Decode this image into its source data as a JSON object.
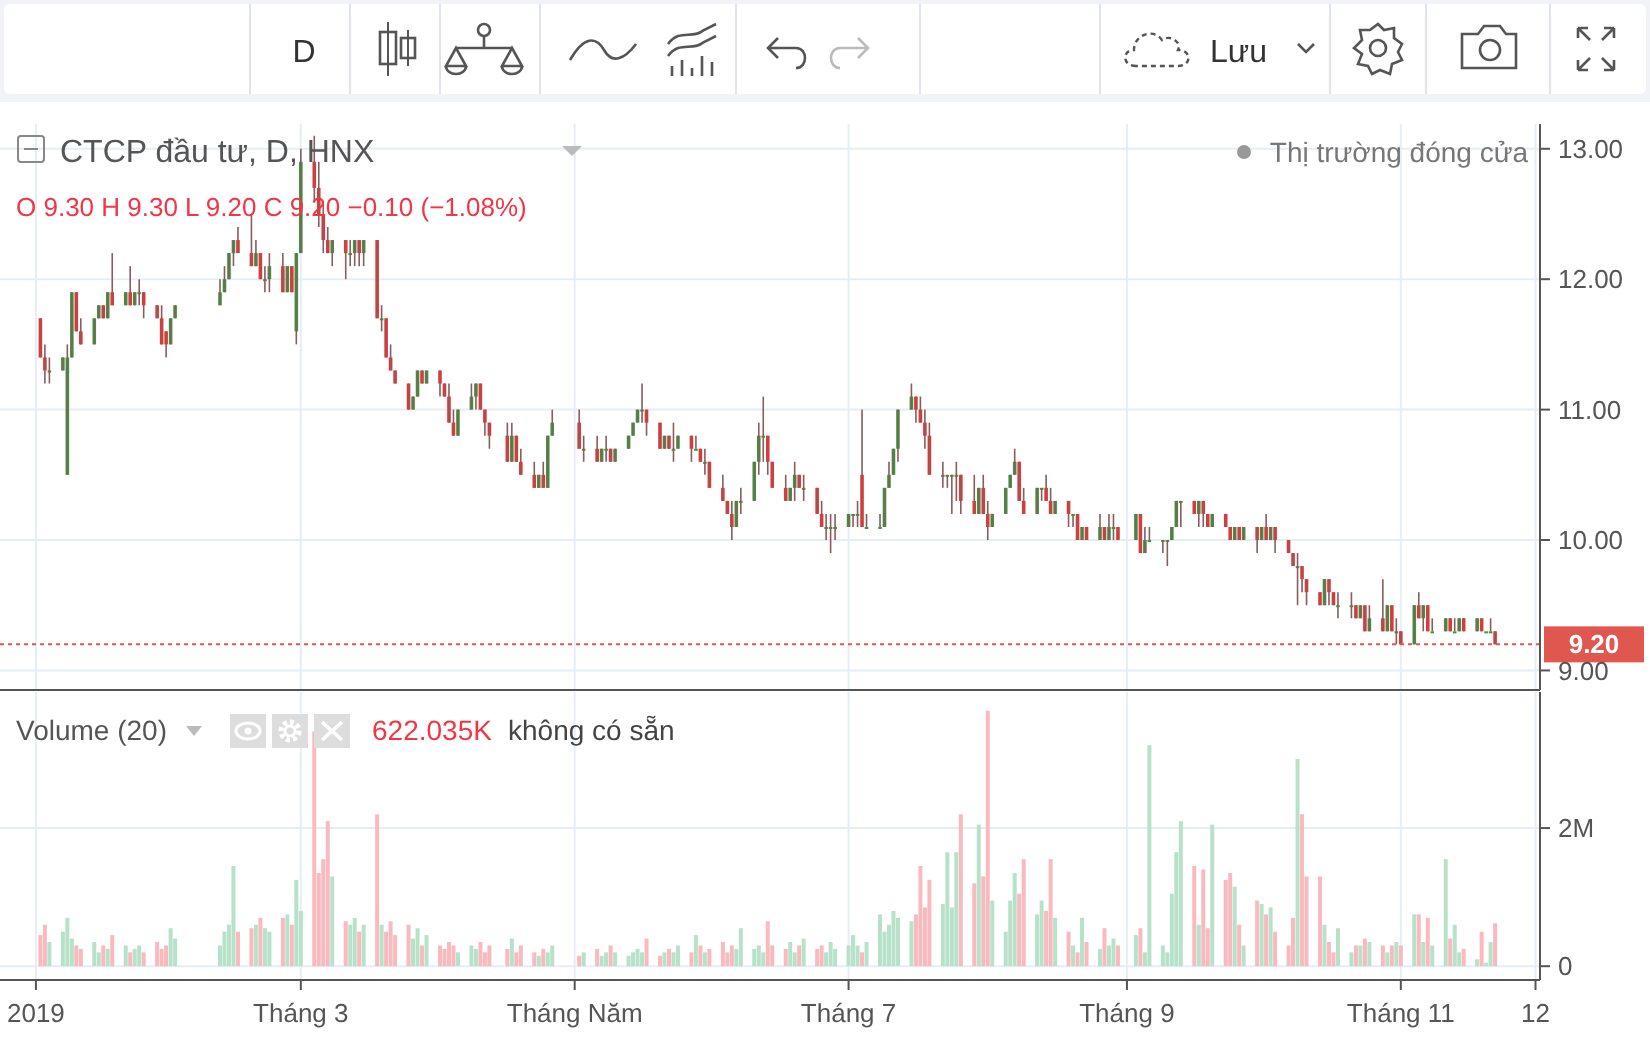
{
  "chart_data": [
    {
      "type": "candlestick",
      "title": "CTCP đầu tư, D, HNX",
      "subtitle": "O 9.30 H 9.30 L 9.20 C 9.20 −0.10 (−1.08%)",
      "annotations": [
        "Thị trường đóng cửa",
        "D",
        "Lưu"
      ],
      "tick_labels": "y",
      "grid": true,
      "x": [
        "2019-01-02",
        "2019-01-03",
        "2019-01-04",
        "2019-01-07",
        "2019-01-08",
        "2019-01-09",
        "2019-01-10",
        "2019-01-11",
        "2019-01-14",
        "2019-01-15",
        "2019-01-16",
        "2019-01-17",
        "2019-01-18",
        "2019-01-21",
        "2019-01-22",
        "2019-01-23",
        "2019-01-24",
        "2019-01-25",
        "2019-01-28",
        "2019-01-29",
        "2019-01-30",
        "2019-01-31",
        "2019-02-01",
        "2019-02-11",
        "2019-02-12",
        "2019-02-13",
        "2019-02-14",
        "2019-02-15",
        "2019-02-18",
        "2019-02-19",
        "2019-02-20",
        "2019-02-21",
        "2019-02-22",
        "2019-02-25",
        "2019-02-26",
        "2019-02-27",
        "2019-02-28",
        "2019-03-01",
        "2019-03-04",
        "2019-03-05",
        "2019-03-06",
        "2019-03-07",
        "2019-03-08",
        "2019-03-11",
        "2019-03-12",
        "2019-03-13",
        "2019-03-14",
        "2019-03-15",
        "2019-03-18",
        "2019-03-19",
        "2019-03-20",
        "2019-03-21",
        "2019-03-22",
        "2019-03-25",
        "2019-03-26",
        "2019-03-27",
        "2019-03-28",
        "2019-03-29",
        "2019-04-01",
        "2019-04-02",
        "2019-04-03",
        "2019-04-04",
        "2019-04-05",
        "2019-04-08",
        "2019-04-09",
        "2019-04-10",
        "2019-04-11",
        "2019-04-12",
        "2019-04-16",
        "2019-04-17",
        "2019-04-18",
        "2019-04-19",
        "2019-04-22",
        "2019-04-23",
        "2019-04-24",
        "2019-04-25",
        "2019-04-26",
        "2019-05-02",
        "2019-05-03",
        "2019-05-06",
        "2019-05-07",
        "2019-05-08",
        "2019-05-09",
        "2019-05-10",
        "2019-05-13",
        "2019-05-14",
        "2019-05-15",
        "2019-05-16",
        "2019-05-17",
        "2019-05-20",
        "2019-05-21",
        "2019-05-22",
        "2019-05-23",
        "2019-05-24",
        "2019-05-27",
        "2019-05-28",
        "2019-05-29",
        "2019-05-30",
        "2019-05-31",
        "2019-06-03",
        "2019-06-04",
        "2019-06-05",
        "2019-06-06",
        "2019-06-07",
        "2019-06-10",
        "2019-06-11",
        "2019-06-12",
        "2019-06-13",
        "2019-06-14",
        "2019-06-17",
        "2019-06-18",
        "2019-06-19",
        "2019-06-20",
        "2019-06-21",
        "2019-06-24",
        "2019-06-25",
        "2019-06-26",
        "2019-06-27",
        "2019-06-28",
        "2019-07-01",
        "2019-07-02",
        "2019-07-03",
        "2019-07-04",
        "2019-07-05",
        "2019-07-08",
        "2019-07-09",
        "2019-07-10",
        "2019-07-11",
        "2019-07-12",
        "2019-07-15",
        "2019-07-16",
        "2019-07-17",
        "2019-07-18",
        "2019-07-19",
        "2019-07-22",
        "2019-07-23",
        "2019-07-24",
        "2019-07-25",
        "2019-07-26",
        "2019-07-29",
        "2019-07-30",
        "2019-07-31",
        "2019-08-01",
        "2019-08-02",
        "2019-08-05",
        "2019-08-06",
        "2019-08-07",
        "2019-08-08",
        "2019-08-09",
        "2019-08-12",
        "2019-08-13",
        "2019-08-14",
        "2019-08-15",
        "2019-08-16",
        "2019-08-19",
        "2019-08-20",
        "2019-08-21",
        "2019-08-22",
        "2019-08-23",
        "2019-08-26",
        "2019-08-27",
        "2019-08-28",
        "2019-08-29",
        "2019-08-30",
        "2019-09-03",
        "2019-09-04",
        "2019-09-05",
        "2019-09-06",
        "2019-09-09",
        "2019-09-10",
        "2019-09-11",
        "2019-09-12",
        "2019-09-13",
        "2019-09-16",
        "2019-09-17",
        "2019-09-18",
        "2019-09-19",
        "2019-09-20",
        "2019-09-23",
        "2019-09-24",
        "2019-09-25",
        "2019-09-26",
        "2019-09-27",
        "2019-09-30",
        "2019-10-01",
        "2019-10-02",
        "2019-10-03",
        "2019-10-04",
        "2019-10-07",
        "2019-10-08",
        "2019-10-09",
        "2019-10-10",
        "2019-10-11",
        "2019-10-14",
        "2019-10-15",
        "2019-10-16",
        "2019-10-17",
        "2019-10-18",
        "2019-10-21",
        "2019-10-22",
        "2019-10-23",
        "2019-10-24",
        "2019-10-25",
        "2019-10-28",
        "2019-10-29",
        "2019-10-30",
        "2019-10-31",
        "2019-11-01",
        "2019-11-04",
        "2019-11-05",
        "2019-11-06",
        "2019-11-07",
        "2019-11-08",
        "2019-11-11",
        "2019-11-12",
        "2019-11-13",
        "2019-11-14",
        "2019-11-15",
        "2019-11-18",
        "2019-11-19",
        "2019-11-20",
        "2019-11-21",
        "2019-11-22"
      ],
      "ohlc": [
        [
          11.7,
          11.7,
          11.4,
          11.4
        ],
        [
          11.4,
          11.5,
          11.2,
          11.3
        ],
        [
          11.3,
          11.4,
          11.2,
          11.3
        ],
        [
          11.3,
          11.4,
          11.3,
          11.4
        ],
        [
          10.5,
          11.5,
          10.5,
          11.4
        ],
        [
          11.4,
          11.9,
          11.4,
          11.9
        ],
        [
          11.9,
          11.9,
          11.6,
          11.6
        ],
        [
          11.6,
          11.7,
          11.5,
          11.5
        ],
        [
          11.5,
          11.7,
          11.5,
          11.7
        ],
        [
          11.7,
          11.8,
          11.7,
          11.8
        ],
        [
          11.8,
          11.8,
          11.7,
          11.7
        ],
        [
          11.7,
          11.9,
          11.7,
          11.9
        ],
        [
          11.9,
          12.2,
          11.8,
          11.8
        ],
        [
          11.8,
          11.9,
          11.8,
          11.9
        ],
        [
          11.9,
          12.1,
          11.8,
          11.8
        ],
        [
          11.8,
          11.9,
          11.8,
          11.9
        ],
        [
          11.9,
          12.0,
          11.8,
          11.9
        ],
        [
          11.9,
          11.9,
          11.7,
          11.8
        ],
        [
          11.8,
          11.8,
          11.7,
          11.7
        ],
        [
          11.7,
          11.8,
          11.5,
          11.5
        ],
        [
          11.6,
          11.6,
          11.4,
          11.5
        ],
        [
          11.5,
          11.7,
          11.5,
          11.7
        ],
        [
          11.7,
          11.8,
          11.7,
          11.8
        ],
        [
          11.8,
          12.0,
          11.8,
          11.9
        ],
        [
          11.9,
          12.1,
          11.9,
          12.0
        ],
        [
          12.0,
          12.2,
          12.0,
          12.2
        ],
        [
          12.2,
          12.3,
          12.1,
          12.3
        ],
        [
          12.3,
          12.4,
          12.2,
          12.2
        ],
        [
          12.2,
          12.5,
          12.1,
          12.1
        ],
        [
          12.1,
          12.3,
          12.1,
          12.2
        ],
        [
          12.2,
          12.2,
          12.0,
          12.0
        ],
        [
          12.0,
          12.1,
          11.9,
          12.0
        ],
        [
          12.0,
          12.2,
          11.9,
          12.1
        ],
        [
          12.1,
          12.2,
          11.9,
          11.9
        ],
        [
          11.9,
          12.1,
          11.9,
          12.1
        ],
        [
          12.1,
          12.1,
          11.9,
          11.9
        ],
        [
          11.6,
          12.2,
          11.5,
          12.2
        ],
        [
          12.2,
          13.0,
          12.2,
          12.9
        ],
        [
          12.9,
          13.1,
          12.6,
          12.7
        ],
        [
          12.7,
          12.9,
          12.4,
          12.5
        ],
        [
          12.5,
          12.6,
          12.2,
          12.3
        ],
        [
          12.3,
          12.4,
          12.2,
          12.2
        ],
        [
          12.2,
          12.3,
          12.1,
          12.3
        ],
        [
          12.3,
          12.3,
          12.0,
          12.2
        ],
        [
          12.2,
          12.3,
          12.1,
          12.2
        ],
        [
          12.2,
          12.3,
          12.1,
          12.3
        ],
        [
          12.3,
          12.3,
          12.1,
          12.2
        ],
        [
          12.2,
          12.3,
          12.1,
          12.3
        ],
        [
          12.3,
          12.3,
          11.7,
          11.7
        ],
        [
          11.7,
          11.8,
          11.6,
          11.7
        ],
        [
          11.7,
          11.7,
          11.4,
          11.4
        ],
        [
          11.4,
          11.5,
          11.3,
          11.3
        ],
        [
          11.3,
          11.3,
          11.2,
          11.2
        ],
        [
          11.2,
          11.2,
          11.0,
          11.0
        ],
        [
          11.0,
          11.1,
          11.0,
          11.1
        ],
        [
          11.1,
          11.3,
          11.1,
          11.3
        ],
        [
          11.3,
          11.3,
          11.2,
          11.2
        ],
        [
          11.2,
          11.3,
          11.2,
          11.3
        ],
        [
          11.3,
          11.3,
          11.1,
          11.2
        ],
        [
          11.2,
          11.2,
          11.1,
          11.1
        ],
        [
          11.1,
          11.2,
          10.9,
          10.9
        ],
        [
          10.9,
          11.0,
          10.8,
          10.8
        ],
        [
          10.8,
          11.0,
          10.8,
          11.0
        ],
        [
          11.0,
          11.2,
          11.0,
          11.1
        ],
        [
          11.1,
          11.2,
          11.0,
          11.2
        ],
        [
          11.2,
          11.2,
          11.0,
          11.0
        ],
        [
          11.0,
          11.0,
          10.8,
          10.9
        ],
        [
          10.9,
          10.9,
          10.7,
          10.8
        ],
        [
          10.8,
          10.9,
          10.6,
          10.6
        ],
        [
          10.6,
          10.9,
          10.6,
          10.8
        ],
        [
          10.8,
          10.8,
          10.6,
          10.6
        ],
        [
          10.6,
          10.7,
          10.5,
          10.5
        ],
        [
          10.5,
          10.6,
          10.4,
          10.4
        ],
        [
          10.4,
          10.5,
          10.4,
          10.5
        ],
        [
          10.5,
          10.6,
          10.4,
          10.4
        ],
        [
          10.4,
          10.8,
          10.4,
          10.8
        ],
        [
          10.8,
          11.0,
          10.8,
          10.9
        ],
        [
          10.9,
          11.0,
          10.7,
          10.7
        ],
        [
          10.7,
          10.8,
          10.6,
          10.7
        ],
        [
          10.7,
          10.8,
          10.6,
          10.6
        ],
        [
          10.6,
          10.7,
          10.6,
          10.7
        ],
        [
          10.7,
          10.8,
          10.6,
          10.7
        ],
        [
          10.7,
          10.7,
          10.6,
          10.6
        ],
        [
          10.6,
          10.7,
          10.6,
          10.7
        ],
        [
          10.7,
          10.8,
          10.7,
          10.8
        ],
        [
          10.8,
          10.9,
          10.8,
          10.9
        ],
        [
          10.9,
          11.0,
          10.9,
          11.0
        ],
        [
          11.0,
          11.2,
          10.9,
          11.0
        ],
        [
          11.0,
          11.0,
          10.8,
          10.9
        ],
        [
          10.9,
          10.9,
          10.7,
          10.7
        ],
        [
          10.7,
          10.8,
          10.7,
          10.8
        ],
        [
          10.8,
          10.8,
          10.7,
          10.7
        ],
        [
          10.7,
          10.9,
          10.6,
          10.7
        ],
        [
          10.7,
          10.8,
          10.7,
          10.8
        ],
        [
          10.8,
          10.8,
          10.6,
          10.7
        ],
        [
          10.7,
          10.8,
          10.7,
          10.7
        ],
        [
          10.7,
          10.7,
          10.6,
          10.6
        ],
        [
          10.6,
          10.7,
          10.5,
          10.6
        ],
        [
          10.6,
          10.6,
          10.4,
          10.4
        ],
        [
          10.4,
          10.5,
          10.3,
          10.3
        ],
        [
          10.3,
          10.3,
          10.2,
          10.2
        ],
        [
          10.2,
          10.3,
          10.0,
          10.1
        ],
        [
          10.1,
          10.3,
          10.1,
          10.3
        ],
        [
          10.3,
          10.4,
          10.2,
          10.3
        ],
        [
          10.3,
          10.6,
          10.3,
          10.6
        ],
        [
          10.6,
          10.9,
          10.5,
          10.8
        ],
        [
          10.8,
          11.1,
          10.6,
          10.8
        ],
        [
          10.8,
          10.8,
          10.5,
          10.6
        ],
        [
          10.6,
          10.6,
          10.4,
          10.4
        ],
        [
          10.4,
          10.5,
          10.3,
          10.3
        ],
        [
          10.3,
          10.4,
          10.3,
          10.4
        ],
        [
          10.4,
          10.6,
          10.3,
          10.5
        ],
        [
          10.5,
          10.5,
          10.4,
          10.4
        ],
        [
          10.4,
          10.5,
          10.3,
          10.4
        ],
        [
          10.4,
          10.4,
          10.2,
          10.2
        ],
        [
          10.2,
          10.3,
          10.1,
          10.1
        ],
        [
          10.1,
          10.2,
          10.0,
          10.1
        ],
        [
          10.1,
          10.2,
          9.9,
          10.1
        ],
        [
          10.1,
          10.2,
          10.0,
          10.1
        ],
        [
          10.1,
          10.2,
          10.1,
          10.2
        ],
        [
          10.2,
          10.2,
          10.1,
          10.2
        ],
        [
          10.2,
          10.3,
          10.1,
          10.2
        ],
        [
          10.5,
          11.0,
          10.1,
          10.1
        ],
        [
          10.1,
          10.2,
          10.1,
          10.1
        ],
        [
          10.1,
          10.2,
          10.1,
          10.1
        ],
        [
          10.1,
          10.4,
          10.1,
          10.4
        ],
        [
          10.4,
          10.6,
          10.4,
          10.5
        ],
        [
          10.5,
          10.7,
          10.5,
          10.7
        ],
        [
          10.7,
          11.0,
          10.6,
          11.0
        ],
        [
          11.0,
          11.2,
          11.0,
          11.1
        ],
        [
          11.1,
          11.1,
          10.9,
          11.0
        ],
        [
          11.0,
          11.1,
          10.9,
          10.9
        ],
        [
          10.9,
          11.0,
          10.7,
          10.8
        ],
        [
          10.8,
          10.9,
          10.5,
          10.5
        ],
        [
          10.5,
          10.6,
          10.4,
          10.5
        ],
        [
          10.5,
          10.5,
          10.4,
          10.5
        ],
        [
          10.5,
          10.5,
          10.2,
          10.5
        ],
        [
          10.5,
          10.6,
          10.3,
          10.5
        ],
        [
          10.5,
          10.5,
          10.2,
          10.3
        ],
        [
          10.3,
          10.5,
          10.2,
          10.2
        ],
        [
          10.2,
          10.4,
          10.2,
          10.4
        ],
        [
          10.4,
          10.5,
          10.2,
          10.2
        ],
        [
          10.2,
          10.3,
          10.0,
          10.1
        ],
        [
          10.1,
          10.2,
          10.1,
          10.2
        ],
        [
          10.2,
          10.4,
          10.2,
          10.4
        ],
        [
          10.4,
          10.5,
          10.4,
          10.5
        ],
        [
          10.5,
          10.7,
          10.5,
          10.6
        ],
        [
          10.6,
          10.6,
          10.3,
          10.3
        ],
        [
          10.3,
          10.4,
          10.2,
          10.2
        ],
        [
          10.2,
          10.4,
          10.2,
          10.4
        ],
        [
          10.4,
          10.4,
          10.3,
          10.4
        ],
        [
          10.4,
          10.5,
          10.3,
          10.3
        ],
        [
          10.3,
          10.4,
          10.2,
          10.2
        ],
        [
          10.2,
          10.3,
          10.2,
          10.3
        ],
        [
          10.3,
          10.3,
          10.1,
          10.2
        ],
        [
          10.2,
          10.2,
          10.1,
          10.2
        ],
        [
          10.2,
          10.2,
          10.0,
          10.0
        ],
        [
          10.0,
          10.1,
          10.0,
          10.1
        ],
        [
          10.1,
          10.1,
          10.0,
          10.0
        ],
        [
          10.0,
          10.2,
          10.0,
          10.1
        ],
        [
          10.1,
          10.1,
          10.0,
          10.0
        ],
        [
          10.0,
          10.2,
          10.0,
          10.1
        ],
        [
          10.1,
          10.2,
          10.0,
          10.1
        ],
        [
          10.1,
          10.1,
          10.0,
          10.0
        ],
        [
          10.0,
          10.2,
          10.0,
          10.2
        ],
        [
          10.2,
          10.2,
          9.9,
          9.9
        ],
        [
          9.9,
          10.1,
          9.9,
          10.0
        ],
        [
          10.0,
          10.1,
          10.0,
          10.0
        ],
        [
          10.0,
          10.0,
          9.9,
          10.0
        ],
        [
          10.0,
          10.0,
          9.8,
          10.0
        ],
        [
          10.0,
          10.1,
          10.0,
          10.1
        ],
        [
          10.1,
          10.3,
          10.1,
          10.3
        ],
        [
          10.3,
          10.3,
          10.1,
          10.3
        ],
        [
          10.3,
          10.3,
          10.2,
          10.2
        ],
        [
          10.2,
          10.3,
          10.1,
          10.3
        ],
        [
          10.3,
          10.3,
          10.1,
          10.2
        ],
        [
          10.2,
          10.2,
          10.1,
          10.1
        ],
        [
          10.1,
          10.2,
          10.1,
          10.2
        ],
        [
          10.2,
          10.2,
          10.1,
          10.1
        ],
        [
          10.1,
          10.1,
          10.0,
          10.0
        ],
        [
          10.0,
          10.1,
          10.0,
          10.1
        ],
        [
          10.1,
          10.1,
          10.0,
          10.0
        ],
        [
          10.0,
          10.1,
          10.0,
          10.1
        ],
        [
          10.1,
          10.1,
          9.9,
          10.0
        ],
        [
          10.0,
          10.1,
          10.0,
          10.1
        ],
        [
          10.1,
          10.2,
          10.0,
          10.0
        ],
        [
          10.0,
          10.1,
          10.0,
          10.1
        ],
        [
          10.1,
          10.1,
          9.9,
          10.0
        ],
        [
          10.0,
          10.0,
          9.9,
          9.9
        ],
        [
          9.9,
          9.9,
          9.8,
          9.8
        ],
        [
          9.8,
          9.9,
          9.5,
          9.8
        ],
        [
          9.8,
          9.8,
          9.6,
          9.7
        ],
        [
          9.7,
          9.7,
          9.5,
          9.6
        ],
        [
          9.6,
          9.6,
          9.5,
          9.5
        ],
        [
          9.5,
          9.7,
          9.5,
          9.7
        ],
        [
          9.7,
          9.7,
          9.5,
          9.6
        ],
        [
          9.6,
          9.6,
          9.5,
          9.5
        ],
        [
          9.5,
          9.6,
          9.4,
          9.5
        ],
        [
          9.5,
          9.6,
          9.4,
          9.5
        ],
        [
          9.5,
          9.5,
          9.4,
          9.4
        ],
        [
          9.4,
          9.5,
          9.4,
          9.5
        ],
        [
          9.5,
          9.5,
          9.3,
          9.3
        ],
        [
          9.3,
          9.5,
          9.3,
          9.4
        ],
        [
          9.4,
          9.7,
          9.3,
          9.3
        ],
        [
          9.3,
          9.5,
          9.3,
          9.5
        ],
        [
          9.5,
          9.5,
          9.3,
          9.3
        ],
        [
          9.3,
          9.4,
          9.2,
          9.3
        ],
        [
          9.3,
          9.3,
          9.2,
          9.2
        ],
        [
          9.2,
          9.5,
          9.2,
          9.5
        ],
        [
          9.5,
          9.6,
          9.4,
          9.4
        ],
        [
          9.4,
          9.5,
          9.3,
          9.5
        ],
        [
          9.5,
          9.5,
          9.3,
          9.3
        ],
        [
          9.3,
          9.4,
          9.3,
          9.3
        ],
        [
          9.3,
          9.4,
          9.3,
          9.4
        ],
        [
          9.4,
          9.4,
          9.3,
          9.3
        ],
        [
          9.3,
          9.4,
          9.3,
          9.3
        ],
        [
          9.3,
          9.4,
          9.3,
          9.4
        ],
        [
          9.4,
          9.4,
          9.3,
          9.3
        ],
        [
          9.3,
          9.4,
          9.3,
          9.4
        ],
        [
          9.4,
          9.4,
          9.3,
          9.3
        ],
        [
          9.3,
          9.3,
          9.3,
          9.3
        ],
        [
          9.3,
          9.4,
          9.3,
          9.3
        ],
        [
          9.3,
          9.3,
          9.2,
          9.2
        ]
      ],
      "xlim": [
        "2018-12-24",
        "2019-12-02"
      ],
      "xticks": [
        {
          "value": "2019-01-01",
          "label": null
        },
        {
          "value": "2019-03-01",
          "label": null
        },
        {
          "value": "2019-05-01",
          "label": null
        },
        {
          "value": "2019-07-01",
          "label": null
        },
        {
          "value": "2019-09-01",
          "label": null
        },
        {
          "value": "2019-11-01",
          "label": null
        },
        {
          "value": "2019-12-01",
          "label": null
        }
      ],
      "ylim": [
        8.85,
        13.19
      ],
      "yticks": [
        {
          "value": 9,
          "label": "9.00"
        },
        {
          "value": 10,
          "label": "10.00"
        },
        {
          "value": 11,
          "label": "11.00"
        },
        {
          "value": 12,
          "label": "12.00"
        },
        {
          "value": 13,
          "label": "13.00"
        }
      ],
      "ref_lines": [
        {
          "axis": "y",
          "value": 9.2,
          "label": "9.20",
          "color": "#e0574f",
          "line_style": "dotted"
        }
      ]
    },
    {
      "type": "bar",
      "title": "Volume (20)",
      "annotations": [
        "622.035K",
        "không có sẵn"
      ],
      "grid": true,
      "x": [
        "2019-01-02",
        "2019-01-03",
        "2019-01-04",
        "2019-01-07",
        "2019-01-08",
        "2019-01-09",
        "2019-01-10",
        "2019-01-11",
        "2019-01-14",
        "2019-01-15",
        "2019-01-16",
        "2019-01-17",
        "2019-01-18",
        "2019-01-21",
        "2019-01-22",
        "2019-01-23",
        "2019-01-24",
        "2019-01-25",
        "2019-01-28",
        "2019-01-29",
        "2019-01-30",
        "2019-01-31",
        "2019-02-01",
        "2019-02-11",
        "2019-02-12",
        "2019-02-13",
        "2019-02-14",
        "2019-02-15",
        "2019-02-18",
        "2019-02-19",
        "2019-02-20",
        "2019-02-21",
        "2019-02-22",
        "2019-02-25",
        "2019-02-26",
        "2019-02-27",
        "2019-02-28",
        "2019-03-01",
        "2019-03-04",
        "2019-03-05",
        "2019-03-06",
        "2019-03-07",
        "2019-03-08",
        "2019-03-11",
        "2019-03-12",
        "2019-03-13",
        "2019-03-14",
        "2019-03-15",
        "2019-03-18",
        "2019-03-19",
        "2019-03-20",
        "2019-03-21",
        "2019-03-22",
        "2019-03-25",
        "2019-03-26",
        "2019-03-27",
        "2019-03-28",
        "2019-03-29",
        "2019-04-01",
        "2019-04-02",
        "2019-04-03",
        "2019-04-04",
        "2019-04-05",
        "2019-04-08",
        "2019-04-09",
        "2019-04-10",
        "2019-04-11",
        "2019-04-12",
        "2019-04-16",
        "2019-04-17",
        "2019-04-18",
        "2019-04-19",
        "2019-04-22",
        "2019-04-23",
        "2019-04-24",
        "2019-04-25",
        "2019-04-26",
        "2019-05-02",
        "2019-05-03",
        "2019-05-06",
        "2019-05-07",
        "2019-05-08",
        "2019-05-09",
        "2019-05-10",
        "2019-05-13",
        "2019-05-14",
        "2019-05-15",
        "2019-05-16",
        "2019-05-17",
        "2019-05-20",
        "2019-05-21",
        "2019-05-22",
        "2019-05-23",
        "2019-05-24",
        "2019-05-27",
        "2019-05-28",
        "2019-05-29",
        "2019-05-30",
        "2019-05-31",
        "2019-06-03",
        "2019-06-04",
        "2019-06-05",
        "2019-06-06",
        "2019-06-07",
        "2019-06-10",
        "2019-06-11",
        "2019-06-12",
        "2019-06-13",
        "2019-06-14",
        "2019-06-17",
        "2019-06-18",
        "2019-06-19",
        "2019-06-20",
        "2019-06-21",
        "2019-06-24",
        "2019-06-25",
        "2019-06-26",
        "2019-06-27",
        "2019-06-28",
        "2019-07-01",
        "2019-07-02",
        "2019-07-03",
        "2019-07-04",
        "2019-07-05",
        "2019-07-08",
        "2019-07-09",
        "2019-07-10",
        "2019-07-11",
        "2019-07-12",
        "2019-07-15",
        "2019-07-16",
        "2019-07-17",
        "2019-07-18",
        "2019-07-19",
        "2019-07-22",
        "2019-07-23",
        "2019-07-24",
        "2019-07-25",
        "2019-07-26",
        "2019-07-29",
        "2019-07-30",
        "2019-07-31",
        "2019-08-01",
        "2019-08-02",
        "2019-08-05",
        "2019-08-06",
        "2019-08-07",
        "2019-08-08",
        "2019-08-09",
        "2019-08-12",
        "2019-08-13",
        "2019-08-14",
        "2019-08-15",
        "2019-08-16",
        "2019-08-19",
        "2019-08-20",
        "2019-08-21",
        "2019-08-22",
        "2019-08-23",
        "2019-08-26",
        "2019-08-27",
        "2019-08-28",
        "2019-08-29",
        "2019-08-30",
        "2019-09-03",
        "2019-09-04",
        "2019-09-05",
        "2019-09-06",
        "2019-09-09",
        "2019-09-10",
        "2019-09-11",
        "2019-09-12",
        "2019-09-13",
        "2019-09-16",
        "2019-09-17",
        "2019-09-18",
        "2019-09-19",
        "2019-09-20",
        "2019-09-23",
        "2019-09-24",
        "2019-09-25",
        "2019-09-26",
        "2019-09-27",
        "2019-09-30",
        "2019-10-01",
        "2019-10-02",
        "2019-10-03",
        "2019-10-04",
        "2019-10-07",
        "2019-10-08",
        "2019-10-09",
        "2019-10-10",
        "2019-10-11",
        "2019-10-14",
        "2019-10-15",
        "2019-10-16",
        "2019-10-17",
        "2019-10-18",
        "2019-10-21",
        "2019-10-22",
        "2019-10-23",
        "2019-10-24",
        "2019-10-25",
        "2019-10-28",
        "2019-10-29",
        "2019-10-30",
        "2019-10-31",
        "2019-11-01",
        "2019-11-04",
        "2019-11-05",
        "2019-11-06",
        "2019-11-07",
        "2019-11-08",
        "2019-11-11",
        "2019-11-12",
        "2019-11-13",
        "2019-11-14",
        "2019-11-15",
        "2019-11-18",
        "2019-11-19",
        "2019-11-20",
        "2019-11-21",
        "2019-11-22"
      ],
      "values": [
        0.45,
        0.6,
        0.35,
        0.5,
        0.7,
        0.4,
        0.3,
        0.25,
        0.35,
        0.2,
        0.3,
        0.25,
        0.45,
        0.3,
        0.2,
        0.25,
        0.3,
        0.2,
        0.35,
        0.25,
        0.3,
        0.55,
        0.4,
        0.3,
        0.5,
        0.6,
        1.45,
        0.5,
        0.55,
        0.6,
        0.7,
        0.55,
        0.5,
        0.7,
        0.75,
        0.6,
        1.25,
        0.8,
        3.4,
        1.35,
        1.55,
        2.1,
        1.3,
        0.65,
        0.6,
        0.7,
        0.5,
        0.6,
        2.2,
        0.6,
        0.5,
        0.65,
        0.45,
        0.6,
        0.4,
        0.55,
        0.3,
        0.45,
        0.3,
        0.25,
        0.35,
        0.3,
        0.2,
        0.3,
        0.25,
        0.35,
        0.2,
        0.3,
        0.25,
        0.4,
        0.2,
        0.3,
        0.2,
        0.15,
        0.25,
        0.2,
        0.3,
        0.15,
        0.2,
        0.25,
        0.15,
        0.2,
        0.3,
        0.2,
        0.15,
        0.2,
        0.25,
        0.2,
        0.4,
        0.15,
        0.2,
        0.25,
        0.2,
        0.3,
        0.2,
        0.45,
        0.3,
        0.2,
        0.25,
        0.35,
        0.2,
        0.3,
        0.25,
        0.55,
        0.25,
        0.3,
        0.2,
        0.65,
        0.3,
        0.25,
        0.35,
        0.2,
        0.3,
        0.4,
        0.25,
        0.3,
        0.2,
        0.35,
        0.25,
        0.3,
        0.45,
        0.3,
        0.2,
        0.35,
        0.75,
        0.5,
        0.6,
        0.8,
        0.7,
        0.65,
        0.75,
        1.45,
        0.85,
        1.25,
        0.9,
        1.65,
        0.85,
        1.65,
        2.2,
        1.2,
        2.05,
        1.3,
        3.7,
        0.95,
        0.5,
        0.95,
        1.35,
        1.05,
        1.55,
        0.75,
        0.95,
        0.8,
        1.55,
        0.7,
        0.5,
        0.3,
        0.2,
        0.7,
        0.35,
        0.25,
        0.55,
        0.3,
        0.4,
        0.3,
        0.45,
        0.55,
        0.2,
        3.2,
        0.3,
        0.2,
        1.05,
        1.65,
        2.1,
        1.45,
        0.6,
        1.4,
        0.55,
        2.05,
        1.25,
        1.35,
        1.15,
        0.6,
        0.3,
        0.95,
        0.9,
        0.75,
        0.85,
        0.5,
        0.3,
        0.7,
        3.0,
        2.2,
        1.3,
        1.3,
        0.6,
        0.35,
        0.2,
        0.55,
        0.2,
        0.3,
        0.3,
        0.4,
        0.35,
        0.3,
        0.2,
        0.3,
        0.35,
        0.3,
        0.75,
        0.75,
        0.35,
        0.7,
        0.3,
        1.55,
        0.4,
        0.6,
        0.2,
        0.25,
        0.1,
        0.5,
        0.05,
        0.35,
        0.62
      ],
      "xlim": [
        "2018-12-24",
        "2019-12-02"
      ],
      "xticks": [
        {
          "value": "2019-01-01",
          "label": "2019"
        },
        {
          "value": "2019-03-01",
          "label": "Tháng 3"
        },
        {
          "value": "2019-05-01",
          "label": "Tháng Năm"
        },
        {
          "value": "2019-07-01",
          "label": "Tháng 7"
        },
        {
          "value": "2019-09-01",
          "label": "Tháng 9"
        },
        {
          "value": "2019-11-01",
          "label": "Tháng 11"
        },
        {
          "value": "2019-12-01",
          "label": "12"
        }
      ],
      "ylim": [
        -0.2,
        3.97
      ],
      "yticks": [
        0,
        {
          "value": 2,
          "label": "2M"
        }
      ]
    }
  ]
}
